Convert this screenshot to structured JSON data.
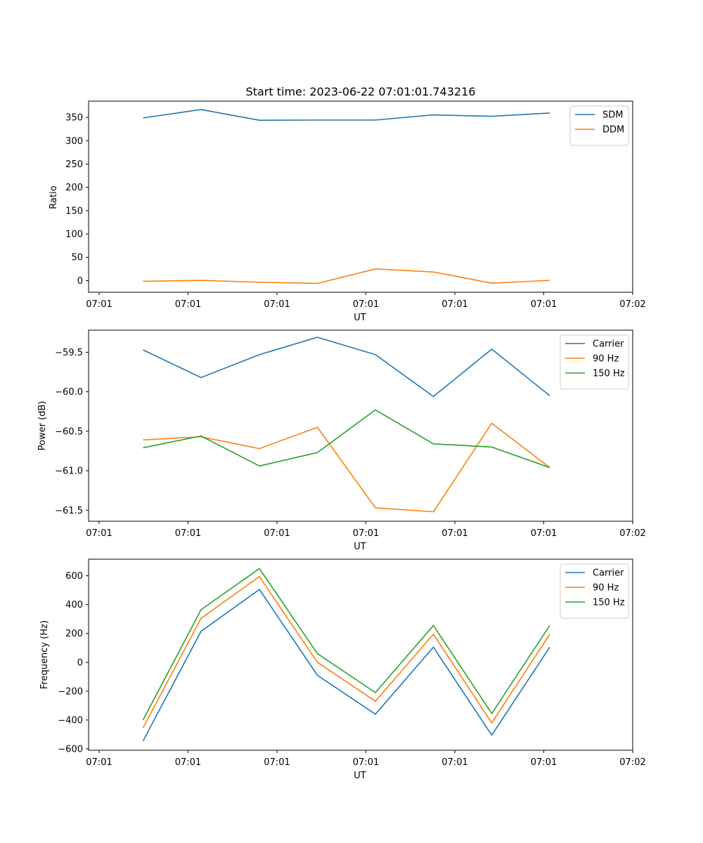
{
  "colors": {
    "c1": "#1f77b4",
    "c2": "#ff7f0e",
    "c3": "#2ca02c"
  },
  "chart_data": [
    {
      "type": "line",
      "title": "Start time: 2023-06-22 07:01:01.743216",
      "xlabel": "UT",
      "ylabel": "Ratio",
      "x_ticks": [
        "07:01",
        "07:01",
        "07:01",
        "07:01",
        "07:01",
        "07:01",
        "07:02"
      ],
      "y_ticks": [
        "0",
        "50",
        "100",
        "150",
        "200",
        "250",
        "300",
        "350"
      ],
      "ylim": [
        -25,
        385
      ],
      "legend_position": "top-right",
      "series": [
        {
          "name": "SDM",
          "color": "#1f77b4",
          "values": [
            349,
            367,
            344,
            344.5,
            344.5,
            355.5,
            352.5,
            359.5
          ]
        },
        {
          "name": "DDM",
          "color": "#ff7f0e",
          "values": [
            -1.5,
            0.5,
            -3.5,
            -6,
            25,
            18.5,
            -5.5,
            0.5
          ]
        }
      ]
    },
    {
      "type": "line",
      "title": "",
      "xlabel": "UT",
      "ylabel": "Power (dB)",
      "x_ticks": [
        "07:01",
        "07:01",
        "07:01",
        "07:01",
        "07:01",
        "07:01",
        "07:02"
      ],
      "y_ticks": [
        "−61.5",
        "−61.0",
        "−60.5",
        "−60.0",
        "−59.5"
      ],
      "ylim": [
        -61.64,
        -59.22
      ],
      "legend_position": "top-right",
      "series": [
        {
          "name": "Carrier",
          "color": "#1f77b4",
          "values": [
            -59.47,
            -59.82,
            -59.53,
            -59.31,
            -59.53,
            -60.06,
            -59.46,
            -60.05
          ]
        },
        {
          "name": "90 Hz",
          "color": "#ff7f0e",
          "values": [
            -60.61,
            -60.57,
            -60.72,
            -60.45,
            -61.47,
            -61.52,
            -60.4,
            -60.96
          ]
        },
        {
          "name": "150 Hz",
          "color": "#2ca02c",
          "values": [
            -60.71,
            -60.56,
            -60.94,
            -60.77,
            -60.23,
            -60.66,
            -60.7,
            -60.96
          ]
        }
      ]
    },
    {
      "type": "line",
      "title": "",
      "xlabel": "UT",
      "ylabel": "Frequency (Hz)",
      "x_ticks": [
        "07:01",
        "07:01",
        "07:01",
        "07:01",
        "07:01",
        "07:01",
        "07:02"
      ],
      "y_ticks": [
        "−600",
        "−400",
        "−200",
        "0",
        "200",
        "400",
        "600"
      ],
      "ylim": [
        -610,
        715
      ],
      "legend_position": "top-right",
      "series": [
        {
          "name": "Carrier",
          "color": "#1f77b4",
          "values": [
            -545,
            215,
            505,
            -90,
            -360,
            105,
            -505,
            105
          ]
        },
        {
          "name": "90 Hz",
          "color": "#ff7f0e",
          "values": [
            -455,
            305,
            595,
            0,
            -270,
            195,
            -420,
            195
          ]
        },
        {
          "name": "150 Hz",
          "color": "#2ca02c",
          "values": [
            -400,
            365,
            650,
            60,
            -210,
            255,
            -355,
            255
          ]
        }
      ]
    }
  ]
}
